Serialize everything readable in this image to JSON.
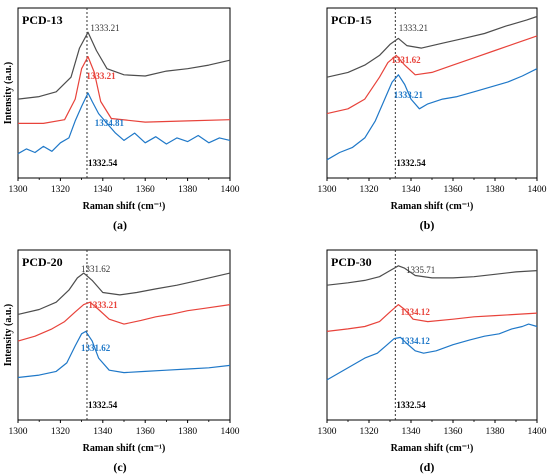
{
  "colors": {
    "black_series": "#4d4d4d",
    "red_series": "#e8433b",
    "blue_series": "#1f78c8",
    "ref_line": "#333333"
  },
  "chart_data": [
    {
      "type": "line",
      "title": "PCD-13",
      "panel_label": "(a)",
      "xlabel": "Raman shift (cm⁻¹)",
      "ylabel": "Intensity (a.u.)",
      "xlim": [
        1300,
        1400
      ],
      "xticks": [
        "1300",
        "1320",
        "1340",
        "1360",
        "1380",
        "1400"
      ],
      "reference_line_x": 1332.54,
      "reference_label": "1332.54",
      "series": [
        {
          "color": "black",
          "peak_label": "1333.21",
          "peak_x": 1333.21,
          "points": [
            [
              1300,
              0.3
            ],
            [
              1310,
              0.32
            ],
            [
              1318,
              0.36
            ],
            [
              1325,
              0.48
            ],
            [
              1329,
              0.72
            ],
            [
              1333,
              0.85
            ],
            [
              1337,
              0.7
            ],
            [
              1342,
              0.55
            ],
            [
              1350,
              0.5
            ],
            [
              1360,
              0.49
            ],
            [
              1370,
              0.53
            ],
            [
              1380,
              0.55
            ],
            [
              1390,
              0.58
            ],
            [
              1400,
              0.62
            ]
          ]
        },
        {
          "color": "red",
          "peak_label": "1333.21",
          "peak_x": 1333.21,
          "points": [
            [
              1300,
              0.1
            ],
            [
              1312,
              0.1
            ],
            [
              1322,
              0.13
            ],
            [
              1327,
              0.3
            ],
            [
              1330,
              0.55
            ],
            [
              1333,
              0.65
            ],
            [
              1336,
              0.52
            ],
            [
              1339,
              0.28
            ],
            [
              1344,
              0.14
            ],
            [
              1360,
              0.11
            ],
            [
              1380,
              0.12
            ],
            [
              1400,
              0.13
            ]
          ]
        },
        {
          "color": "blue",
          "peak_label": "1334.81",
          "peak_x": 1334.81,
          "points": [
            [
              1300,
              -0.15
            ],
            [
              1304,
              -0.11
            ],
            [
              1308,
              -0.14
            ],
            [
              1312,
              -0.09
            ],
            [
              1316,
              -0.13
            ],
            [
              1320,
              -0.06
            ],
            [
              1324,
              -0.02
            ],
            [
              1327,
              0.12
            ],
            [
              1330,
              0.24
            ],
            [
              1333,
              0.35
            ],
            [
              1335,
              0.28
            ],
            [
              1338,
              0.18
            ],
            [
              1342,
              0.1
            ],
            [
              1346,
              0.02
            ],
            [
              1350,
              -0.04
            ],
            [
              1355,
              0.02
            ],
            [
              1360,
              -0.06
            ],
            [
              1365,
              -0.01
            ],
            [
              1370,
              -0.07
            ],
            [
              1375,
              -0.02
            ],
            [
              1380,
              -0.05
            ],
            [
              1385,
              0.0
            ],
            [
              1390,
              -0.06
            ],
            [
              1395,
              -0.02
            ],
            [
              1400,
              -0.04
            ]
          ]
        }
      ]
    },
    {
      "type": "line",
      "title": "PCD-15",
      "panel_label": "(b)",
      "xlabel": "Raman shift (cm⁻¹)",
      "ylabel": "",
      "xlim": [
        1300,
        1400
      ],
      "xticks": [
        "1300",
        "1320",
        "1340",
        "1360",
        "1380",
        "1400"
      ],
      "reference_line_x": 1332.54,
      "reference_label": "1332.54",
      "series": [
        {
          "color": "black",
          "peak_label": "1333.21",
          "peak_x": 1333.21,
          "points": [
            [
              1300,
              0.48
            ],
            [
              1310,
              0.52
            ],
            [
              1318,
              0.58
            ],
            [
              1325,
              0.66
            ],
            [
              1330,
              0.75
            ],
            [
              1334,
              0.8
            ],
            [
              1338,
              0.74
            ],
            [
              1345,
              0.72
            ],
            [
              1355,
              0.76
            ],
            [
              1365,
              0.8
            ],
            [
              1375,
              0.84
            ],
            [
              1385,
              0.9
            ],
            [
              1395,
              0.95
            ],
            [
              1400,
              0.98
            ]
          ]
        },
        {
          "color": "red",
          "peak_label": "1331.62",
          "peak_x": 1331.62,
          "points": [
            [
              1300,
              0.18
            ],
            [
              1310,
              0.22
            ],
            [
              1318,
              0.3
            ],
            [
              1325,
              0.48
            ],
            [
              1329,
              0.6
            ],
            [
              1333,
              0.66
            ],
            [
              1337,
              0.58
            ],
            [
              1342,
              0.5
            ],
            [
              1350,
              0.52
            ],
            [
              1360,
              0.58
            ],
            [
              1370,
              0.64
            ],
            [
              1380,
              0.7
            ],
            [
              1390,
              0.76
            ],
            [
              1400,
              0.82
            ]
          ]
        },
        {
          "color": "blue",
          "peak_label": "1333.21",
          "peak_x": 1333.21,
          "points": [
            [
              1300,
              -0.2
            ],
            [
              1306,
              -0.14
            ],
            [
              1312,
              -0.1
            ],
            [
              1318,
              -0.02
            ],
            [
              1323,
              0.12
            ],
            [
              1328,
              0.32
            ],
            [
              1331,
              0.44
            ],
            [
              1334,
              0.5
            ],
            [
              1337,
              0.42
            ],
            [
              1340,
              0.3
            ],
            [
              1344,
              0.22
            ],
            [
              1348,
              0.26
            ],
            [
              1355,
              0.3
            ],
            [
              1362,
              0.32
            ],
            [
              1370,
              0.36
            ],
            [
              1378,
              0.4
            ],
            [
              1386,
              0.44
            ],
            [
              1393,
              0.49
            ],
            [
              1400,
              0.55
            ]
          ]
        }
      ]
    },
    {
      "type": "line",
      "title": "PCD-20",
      "panel_label": "(c)",
      "xlabel": "Raman shift (cm⁻¹)",
      "ylabel": "Intensity (a.u.)",
      "xlim": [
        1300,
        1400
      ],
      "xticks": [
        "1300",
        "1320",
        "1340",
        "1360",
        "1380",
        "1400"
      ],
      "reference_line_x": 1332.54,
      "reference_label": "1332.54",
      "series": [
        {
          "color": "black",
          "peak_label": "1331.62",
          "peak_x": 1331.62,
          "points": [
            [
              1300,
              0.52
            ],
            [
              1310,
              0.56
            ],
            [
              1318,
              0.62
            ],
            [
              1324,
              0.72
            ],
            [
              1328,
              0.82
            ],
            [
              1331,
              0.86
            ],
            [
              1335,
              0.8
            ],
            [
              1340,
              0.7
            ],
            [
              1348,
              0.68
            ],
            [
              1356,
              0.7
            ],
            [
              1365,
              0.73
            ],
            [
              1375,
              0.76
            ],
            [
              1385,
              0.8
            ],
            [
              1400,
              0.86
            ]
          ]
        },
        {
          "color": "red",
          "peak_label": "1333.21",
          "peak_x": 1333.21,
          "points": [
            [
              1300,
              0.3
            ],
            [
              1308,
              0.34
            ],
            [
              1316,
              0.4
            ],
            [
              1322,
              0.46
            ],
            [
              1327,
              0.54
            ],
            [
              1331,
              0.6
            ],
            [
              1334,
              0.62
            ],
            [
              1338,
              0.56
            ],
            [
              1343,
              0.48
            ],
            [
              1350,
              0.44
            ],
            [
              1358,
              0.47
            ],
            [
              1365,
              0.5
            ],
            [
              1372,
              0.52
            ],
            [
              1380,
              0.55
            ],
            [
              1388,
              0.57
            ],
            [
              1400,
              0.6
            ]
          ]
        },
        {
          "color": "blue",
          "peak_label": "1331.62",
          "peak_x": 1331.62,
          "points": [
            [
              1300,
              0.0
            ],
            [
              1310,
              0.02
            ],
            [
              1318,
              0.05
            ],
            [
              1323,
              0.12
            ],
            [
              1327,
              0.26
            ],
            [
              1330,
              0.36
            ],
            [
              1332,
              0.38
            ],
            [
              1335,
              0.3
            ],
            [
              1338,
              0.16
            ],
            [
              1343,
              0.06
            ],
            [
              1350,
              0.04
            ],
            [
              1360,
              0.05
            ],
            [
              1370,
              0.06
            ],
            [
              1380,
              0.07
            ],
            [
              1390,
              0.08
            ],
            [
              1400,
              0.1
            ]
          ]
        }
      ]
    },
    {
      "type": "line",
      "title": "PCD-30",
      "panel_label": "(d)",
      "xlabel": "Raman shift (cm⁻¹)",
      "ylabel": "",
      "xlim": [
        1300,
        1400
      ],
      "xticks": [
        "1300",
        "1320",
        "1340",
        "1360",
        "1380",
        "1400"
      ],
      "reference_line_x": 1332.54,
      "reference_label": "1332.54",
      "series": [
        {
          "color": "black",
          "peak_label": "1335.71",
          "peak_x": 1335.71,
          "points": [
            [
              1300,
              0.76
            ],
            [
              1310,
              0.78
            ],
            [
              1318,
              0.8
            ],
            [
              1325,
              0.83
            ],
            [
              1330,
              0.88
            ],
            [
              1334,
              0.92
            ],
            [
              1337,
              0.9
            ],
            [
              1342,
              0.84
            ],
            [
              1350,
              0.82
            ],
            [
              1360,
              0.82
            ],
            [
              1370,
              0.83
            ],
            [
              1380,
              0.85
            ],
            [
              1390,
              0.87
            ],
            [
              1400,
              0.88
            ]
          ]
        },
        {
          "color": "red",
          "peak_label": "1334.12",
          "peak_x": 1334.12,
          "points": [
            [
              1300,
              0.38
            ],
            [
              1310,
              0.4
            ],
            [
              1318,
              0.42
            ],
            [
              1325,
              0.46
            ],
            [
              1330,
              0.54
            ],
            [
              1334,
              0.6
            ],
            [
              1337,
              0.56
            ],
            [
              1341,
              0.48
            ],
            [
              1348,
              0.46
            ],
            [
              1360,
              0.48
            ],
            [
              1370,
              0.5
            ],
            [
              1380,
              0.51
            ],
            [
              1390,
              0.52
            ],
            [
              1400,
              0.53
            ]
          ]
        },
        {
          "color": "blue",
          "peak_label": "1334.12",
          "peak_x": 1334.12,
          "points": [
            [
              1300,
              -0.02
            ],
            [
              1306,
              0.04
            ],
            [
              1312,
              0.1
            ],
            [
              1318,
              0.16
            ],
            [
              1324,
              0.2
            ],
            [
              1328,
              0.26
            ],
            [
              1332,
              0.32
            ],
            [
              1335,
              0.33
            ],
            [
              1338,
              0.28
            ],
            [
              1342,
              0.22
            ],
            [
              1346,
              0.2
            ],
            [
              1352,
              0.22
            ],
            [
              1360,
              0.27
            ],
            [
              1368,
              0.31
            ],
            [
              1375,
              0.34
            ],
            [
              1382,
              0.36
            ],
            [
              1388,
              0.4
            ],
            [
              1393,
              0.42
            ],
            [
              1396,
              0.44
            ],
            [
              1400,
              0.42
            ]
          ]
        }
      ]
    }
  ]
}
